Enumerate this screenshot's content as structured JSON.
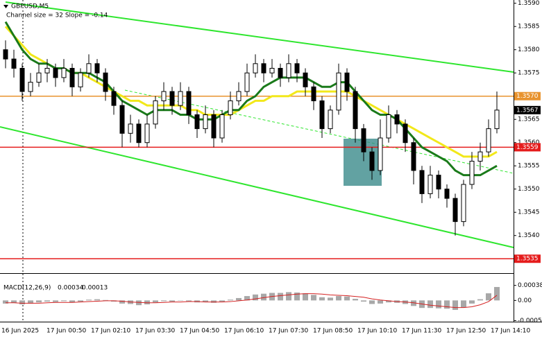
{
  "chart_data": [
    {
      "type": "candlestick",
      "title": "GBPUSD,M5",
      "subtitle": "Channel size = 32 Slope = -0.14",
      "ylim": [
        1.35322,
        1.35907
      ],
      "yticks": [
        {
          "value": 1.354,
          "label": "1.3540"
        },
        {
          "value": 1.3545,
          "label": "1.3545"
        },
        {
          "value": 1.355,
          "label": "1.3550"
        },
        {
          "value": 1.3555,
          "label": "1.3555"
        },
        {
          "value": 1.356,
          "label": "1.3560"
        },
        {
          "value": 1.3565,
          "label": "1.3565"
        },
        {
          "value": 1.3575,
          "label": "1.3575"
        },
        {
          "value": 1.358,
          "label": "1.3580"
        },
        {
          "value": 1.3585,
          "label": "1.3585"
        },
        {
          "value": 1.359,
          "label": "1.3590"
        }
      ],
      "levels": [
        {
          "value": 1.357,
          "label": "1.3570",
          "color": "#e8932e"
        },
        {
          "value": 1.3559,
          "label": "1.3559",
          "color": "#e51c1c"
        },
        {
          "value": 1.3535,
          "label": "1.3535",
          "color": "#e51c1c"
        }
      ],
      "time_axis": [
        "16 Jun 2025",
        "17 Jun 00:50",
        "17 Jun 02:10",
        "17 Jun 03:30",
        "17 Jun 04:50",
        "17 Jun 06:10",
        "17 Jun 07:30",
        "17 Jun 08:50",
        "17 Jun 10:10",
        "17 Jun 11:30",
        "17 Jun 12:50",
        "17 Jun 14:10"
      ],
      "open": [
        1.358,
        1.3578,
        1.3576,
        1.3571,
        1.3573,
        1.3575,
        1.3576,
        1.3574,
        1.3576,
        1.3572,
        1.3575,
        1.3577,
        1.3575,
        1.3571,
        1.3568,
        1.3562,
        1.3564,
        1.356,
        1.3564,
        1.3569,
        1.3571,
        1.3568,
        1.3571,
        1.3566,
        1.3563,
        1.3566,
        1.3561,
        1.3566,
        1.3569,
        1.3571,
        1.3575,
        1.3577,
        1.3575,
        1.3576,
        1.3574,
        1.3577,
        1.3575,
        1.3572,
        1.3569,
        1.3563,
        1.3567,
        1.3575,
        1.3571,
        1.3563,
        1.3558,
        1.3554,
        1.3561,
        1.3566,
        1.3564,
        1.356,
        1.3554,
        1.3549,
        1.3553,
        1.355,
        1.3548,
        1.3543,
        1.3551,
        1.3556,
        1.3558,
        1.3563
      ],
      "high": [
        1.3582,
        1.358,
        1.3577,
        1.3575,
        1.3577,
        1.3578,
        1.3577,
        1.3578,
        1.3577,
        1.3576,
        1.3579,
        1.3578,
        1.3576,
        1.3572,
        1.3569,
        1.3566,
        1.3565,
        1.3566,
        1.357,
        1.3573,
        1.3572,
        1.3573,
        1.3572,
        1.3567,
        1.3568,
        1.3567,
        1.3567,
        1.3571,
        1.3573,
        1.3577,
        1.3579,
        1.3578,
        1.3578,
        1.3577,
        1.3579,
        1.3578,
        1.3576,
        1.3573,
        1.357,
        1.3568,
        1.3577,
        1.3576,
        1.3572,
        1.3564,
        1.3559,
        1.3565,
        1.3568,
        1.3567,
        1.3565,
        1.3561,
        1.3555,
        1.3555,
        1.3554,
        1.3551,
        1.3549,
        1.3552,
        1.3558,
        1.356,
        1.3565,
        1.3571
      ],
      "low": [
        1.3576,
        1.3574,
        1.3569,
        1.357,
        1.3572,
        1.3573,
        1.3572,
        1.3573,
        1.357,
        1.3571,
        1.3574,
        1.3573,
        1.3569,
        1.3566,
        1.3559,
        1.356,
        1.3559,
        1.3559,
        1.3563,
        1.3567,
        1.3566,
        1.3567,
        1.3564,
        1.3561,
        1.3562,
        1.3559,
        1.356,
        1.3565,
        1.3568,
        1.357,
        1.3574,
        1.3573,
        1.3574,
        1.3572,
        1.3573,
        1.3573,
        1.357,
        1.3567,
        1.3561,
        1.3562,
        1.3566,
        1.3569,
        1.356,
        1.3556,
        1.3552,
        1.3553,
        1.356,
        1.3562,
        1.3558,
        1.3551,
        1.3547,
        1.3548,
        1.3548,
        1.3546,
        1.354,
        1.3542,
        1.355,
        1.3554,
        1.3557,
        1.3562
      ],
      "close": [
        1.3578,
        1.3576,
        1.3571,
        1.3573,
        1.3575,
        1.3576,
        1.3574,
        1.3576,
        1.3572,
        1.3575,
        1.3577,
        1.3575,
        1.3571,
        1.3568,
        1.3562,
        1.3564,
        1.356,
        1.3564,
        1.3569,
        1.3571,
        1.3568,
        1.3571,
        1.3566,
        1.3563,
        1.3566,
        1.3561,
        1.3566,
        1.3569,
        1.3571,
        1.3575,
        1.3577,
        1.3575,
        1.3576,
        1.3574,
        1.3577,
        1.3575,
        1.3572,
        1.3569,
        1.3563,
        1.3567,
        1.3575,
        1.3571,
        1.3563,
        1.3558,
        1.3554,
        1.3561,
        1.3566,
        1.3564,
        1.356,
        1.3554,
        1.3549,
        1.3553,
        1.355,
        1.3548,
        1.3543,
        1.3551,
        1.3556,
        1.3558,
        1.3563,
        1.3567
      ],
      "series": [
        {
          "color": "#f2e81a",
          "values": [
            1.3585,
            1.3583,
            1.3581,
            1.3579,
            1.3578,
            1.3577,
            1.3576,
            1.3576,
            1.3575,
            1.3575,
            1.3574,
            1.3573,
            1.3572,
            1.3571,
            1.357,
            1.3569,
            1.3569,
            1.3568,
            1.3568,
            1.3568,
            1.3568,
            1.3568,
            1.3567,
            1.3567,
            1.3566,
            1.3566,
            1.3566,
            1.3566,
            1.3567,
            1.3568,
            1.3569,
            1.3569,
            1.357,
            1.357,
            1.357,
            1.3571,
            1.3571,
            1.3571,
            1.3571,
            1.3571,
            1.3571,
            1.3571,
            1.357,
            1.3569,
            1.3568,
            1.3567,
            1.3566,
            1.3565,
            1.3564,
            1.3563,
            1.3562,
            1.3561,
            1.356,
            1.3559,
            1.3558,
            1.3557,
            1.3557,
            1.3557,
            1.3557,
            1.3558
          ]
        },
        {
          "color": "#1a7a1a",
          "values": [
            1.3586,
            1.3583,
            1.358,
            1.3578,
            1.3577,
            1.3577,
            1.3576,
            1.3576,
            1.3575,
            1.3575,
            1.3575,
            1.3574,
            1.3573,
            1.3571,
            1.3569,
            1.3568,
            1.3567,
            1.3566,
            1.3567,
            1.3567,
            1.3567,
            1.3566,
            1.3566,
            1.3565,
            1.3565,
            1.3565,
            1.3566,
            1.3567,
            1.3567,
            1.3569,
            1.357,
            1.3572,
            1.3573,
            1.3574,
            1.3574,
            1.3574,
            1.3574,
            1.3573,
            1.3572,
            1.3572,
            1.3573,
            1.3573,
            1.3571,
            1.3569,
            1.3567,
            1.3566,
            1.3566,
            1.3565,
            1.3563,
            1.3561,
            1.3559,
            1.3558,
            1.3557,
            1.3556,
            1.3554,
            1.3553,
            1.3553,
            1.3553,
            1.3554,
            1.3555
          ]
        }
      ]
    },
    {
      "type": "bar",
      "title": "MACD(12,26,9)",
      "color": "#a8a8a8",
      "signal_color": "#d42020",
      "ylim": [
        -0.00052,
        0.00062
      ],
      "yticks": [
        -0.00051,
        {
          "value": 0,
          "label": "0.00"
        },
        0.00038
      ],
      "values": [
        -8e-05,
        -6e-05,
        -0.0001,
        -8e-05,
        -5e-05,
        -3e-05,
        -4e-05,
        -2e-05,
        -5e-05,
        -3e-05,
        2e-05,
        3e-05,
        1e-05,
        -3e-05,
        -8e-05,
        -9e-05,
        -0.00012,
        -0.0001,
        -5e-05,
        -2e-05,
        -3e-05,
        0,
        -2e-05,
        -5e-05,
        -4e-05,
        -6e-05,
        -3e-05,
        2e-05,
        6e-05,
        0.00011,
        0.00015,
        0.00017,
        0.00019,
        0.00019,
        0.00021,
        0.0002,
        0.00018,
        0.00014,
        8e-05,
        7e-05,
        0.00011,
        0.0001,
        4e-05,
        -3e-05,
        -9e-05,
        -8e-05,
        -5e-05,
        -6e-05,
        -9e-05,
        -0.00014,
        -0.00019,
        -0.00019,
        -0.0002,
        -0.00021,
        -0.00024,
        -0.00018,
        -8e-05,
        3e-05,
        0.00018,
        0.00034
      ],
      "signal": [
        -6e-05,
        -6e-05,
        -7e-05,
        -7e-05,
        -7e-05,
        -6e-05,
        -5e-05,
        -5e-05,
        -5e-05,
        -4e-05,
        -3e-05,
        -2e-05,
        -1e-05,
        -1e-05,
        -2e-05,
        -4e-05,
        -5e-05,
        -6e-05,
        -6e-05,
        -5e-05,
        -4e-05,
        -4e-05,
        -3e-05,
        -3e-05,
        -4e-05,
        -4e-05,
        -4e-05,
        -3e-05,
        -1e-05,
        1e-05,
        4e-05,
        7e-05,
        0.0001,
        0.00012,
        0.00014,
        0.00016,
        0.00017,
        0.00017,
        0.00016,
        0.00014,
        0.00013,
        0.00012,
        0.0001,
        8e-05,
        4e-05,
        1e-05,
        -1e-05,
        -3e-05,
        -4e-05,
        -6e-05,
        -9e-05,
        -0.00012,
        -0.00014,
        -0.00016,
        -0.00018,
        -0.00018,
        -0.00016,
        -0.00011,
        -3e-05,
        0.00013
      ]
    }
  ]
}
